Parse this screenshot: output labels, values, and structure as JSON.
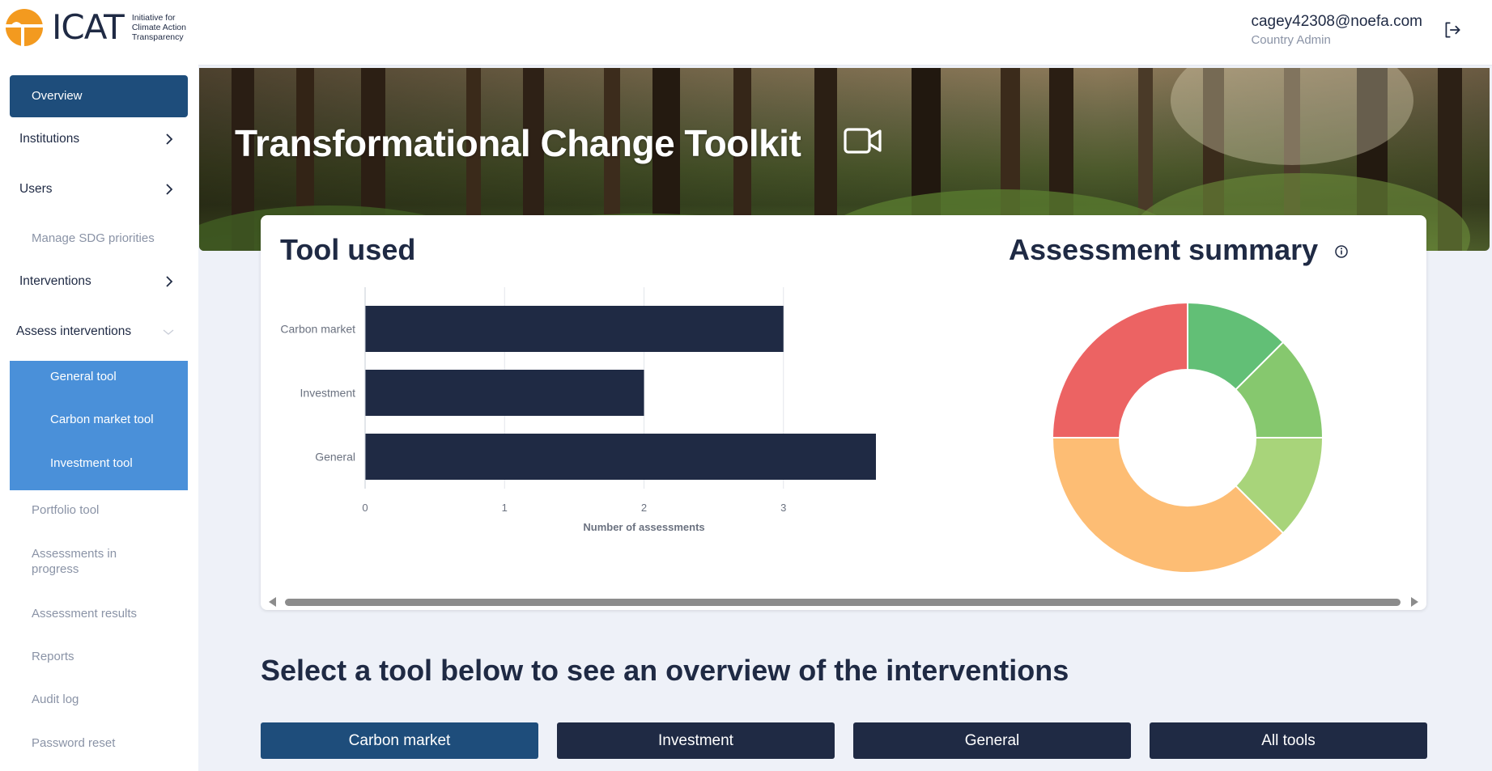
{
  "header": {
    "logo_word": "ICAT",
    "logo_tagline": "Initiative for Climate Action Transparency",
    "user_email": "cagey42308@noefa.com",
    "user_role": "Country Admin"
  },
  "sidebar": {
    "overview": "Overview",
    "institutions": "Institutions",
    "users": "Users",
    "manage_sdg": "Manage SDG priorities",
    "interventions": "Interventions",
    "assess_interventions": "Assess interventions",
    "assess_sub": [
      "General tool",
      "Carbon market tool",
      "Investment tool"
    ],
    "portfolio_tool": "Portfolio tool",
    "assessments_in_progress": "Assessments in progress",
    "assessment_results": "Assessment results",
    "reports": "Reports",
    "audit_log": "Audit log",
    "password_reset": "Password reset"
  },
  "banner": {
    "title": "Transformational Change Toolkit"
  },
  "card": {
    "tool_used_title": "Tool used",
    "assessment_summary_title": "Assessment summary"
  },
  "chart_data": [
    {
      "type": "bar",
      "orientation": "horizontal",
      "categories": [
        "Carbon market",
        "Investment",
        "General"
      ],
      "values": [
        3,
        2,
        4
      ],
      "xlabel": "Number of assessments",
      "ylabel": "",
      "xlim": [
        0,
        4
      ],
      "x_ticks": [
        "0",
        "1",
        "2",
        "3",
        "4"
      ],
      "bar_color": "#1f2a44",
      "grid": true
    },
    {
      "type": "pie",
      "donut": true,
      "values": [
        12.5,
        12.5,
        12.5,
        37.5,
        25
      ],
      "colors": [
        "#62bf76",
        "#86c86e",
        "#a8d47a",
        "#fdbd74",
        "#ec6363"
      ]
    }
  ],
  "bottom": {
    "section_title": "Select a tool below to see an overview of the interventions",
    "tools": [
      "Carbon market",
      "Investment",
      "General",
      "All tools"
    ]
  },
  "colors": {
    "navy": "#1f2a44",
    "active_blue": "#1e4d7b",
    "sub_menu_blue": "#4a90d9",
    "logo_orange": "#f39a1f"
  }
}
